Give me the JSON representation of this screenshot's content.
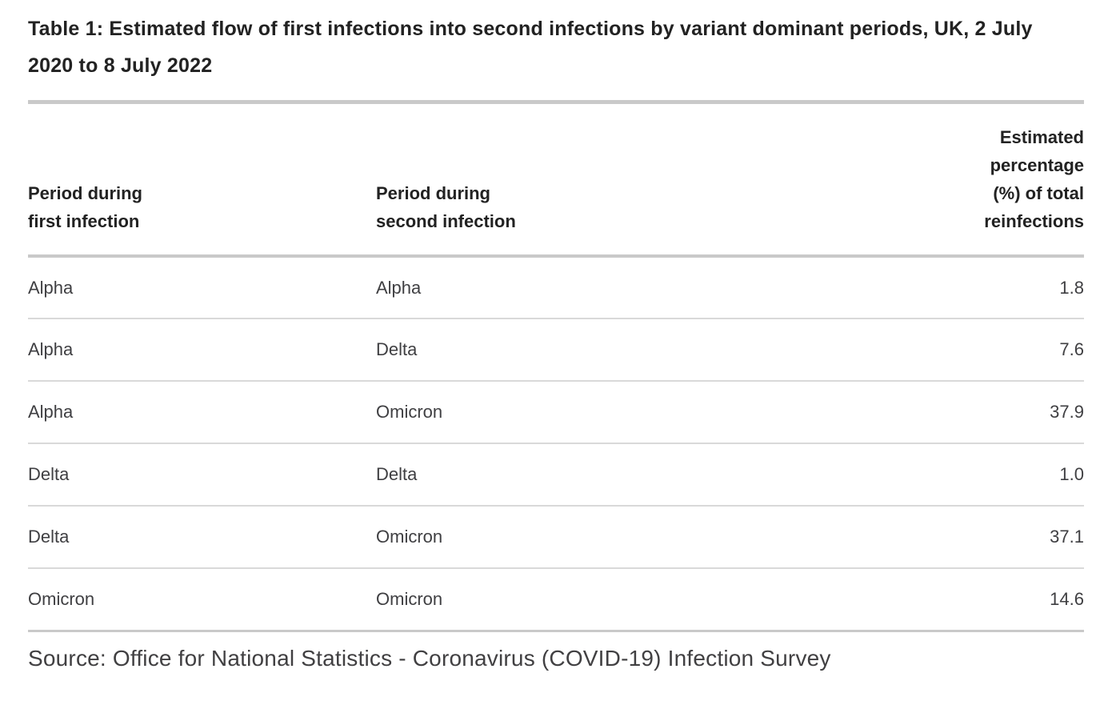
{
  "chart_data": {
    "type": "table",
    "title": "Table 1: Estimated flow of first infections into second infections by variant dominant periods, UK, 2 July 2020 to 8 July 2022",
    "columns": [
      {
        "id": "first_infection_period",
        "label": "Period during\nfirst infection",
        "align": "left"
      },
      {
        "id": "second_infection_period",
        "label": "Period during\nsecond infection",
        "align": "left"
      },
      {
        "id": "estimated_percentage",
        "label": "Estimated\npercentage\n(%) of total\nreinfections",
        "align": "right"
      }
    ],
    "rows": [
      [
        "Alpha",
        "Alpha",
        "1.8"
      ],
      [
        "Alpha",
        "Delta",
        "7.6"
      ],
      [
        "Alpha",
        "Omicron",
        "37.9"
      ],
      [
        "Delta",
        "Delta",
        "1.0"
      ],
      [
        "Delta",
        "Omicron",
        "37.1"
      ],
      [
        "Omicron",
        "Omicron",
        "14.6"
      ]
    ],
    "source": "Source: Office for National Statistics - Coronavirus (COVID-19) Infection Survey",
    "layout": {
      "grid": "off",
      "value_alignment": "right"
    }
  },
  "colors": {
    "background": "#ffffff",
    "title_text": "#222222",
    "body_text": "#3f3f42",
    "source_text": "#414042",
    "divider_thick": "#c9c9c9",
    "divider_row": "#d9d9d9"
  }
}
